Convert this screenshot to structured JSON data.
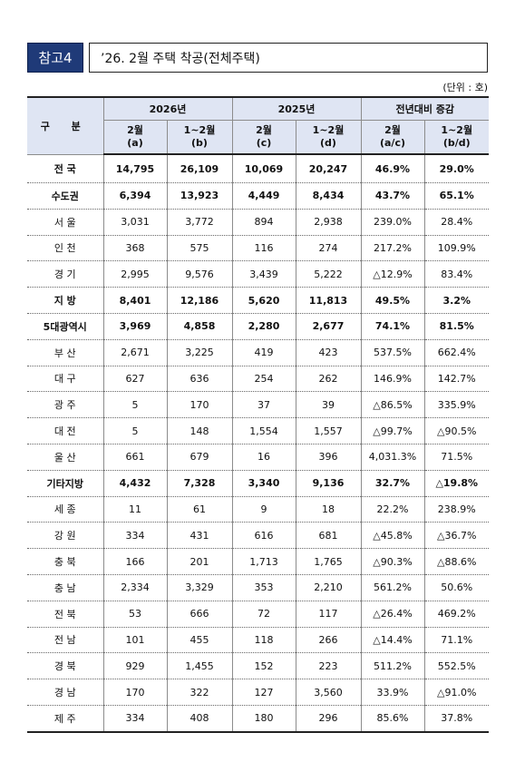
{
  "title": {
    "tag": "참고4",
    "text": "’26. 2월 주택 착공(전체주택)"
  },
  "unit": "(단위 : 호)",
  "headers": {
    "gubun": "구 분",
    "groups": [
      "2026년",
      "2025년",
      "전년대비 증감"
    ],
    "sub": [
      {
        "line1": "2월",
        "line2": "(a)"
      },
      {
        "line1": "1~2월",
        "line2": "(b)"
      },
      {
        "line1": "2월",
        "line2": "(c)"
      },
      {
        "line1": "1~2월",
        "line2": "(d)"
      },
      {
        "line1": "2월",
        "line2": "(a/c)"
      },
      {
        "line1": "1~2월",
        "line2": "(b/d)"
      }
    ]
  },
  "rows": [
    {
      "label": "전 국",
      "values": [
        "14,795",
        "26,109",
        "10,069",
        "20,247",
        "46.9%",
        "29.0%"
      ],
      "bold": true
    },
    {
      "label": "수도권",
      "values": [
        "6,394",
        "13,923",
        "4,449",
        "8,434",
        "43.7%",
        "65.1%"
      ],
      "bold": true
    },
    {
      "label": "서 울",
      "values": [
        "3,031",
        "3,772",
        "894",
        "2,938",
        "239.0%",
        "28.4%"
      ],
      "bold": false
    },
    {
      "label": "인 천",
      "values": [
        "368",
        "575",
        "116",
        "274",
        "217.2%",
        "109.9%"
      ],
      "bold": false
    },
    {
      "label": "경 기",
      "values": [
        "2,995",
        "9,576",
        "3,439",
        "5,222",
        "△12.9%",
        "83.4%"
      ],
      "bold": false
    },
    {
      "label": "지  방",
      "values": [
        "8,401",
        "12,186",
        "5,620",
        "11,813",
        "49.5%",
        "3.2%"
      ],
      "bold": true
    },
    {
      "label": "5대광역시",
      "values": [
        "3,969",
        "4,858",
        "2,280",
        "2,677",
        "74.1%",
        "81.5%"
      ],
      "bold": true
    },
    {
      "label": "부 산",
      "values": [
        "2,671",
        "3,225",
        "419",
        "423",
        "537.5%",
        "662.4%"
      ],
      "bold": false
    },
    {
      "label": "대 구",
      "values": [
        "627",
        "636",
        "254",
        "262",
        "146.9%",
        "142.7%"
      ],
      "bold": false
    },
    {
      "label": "광 주",
      "values": [
        "5",
        "170",
        "37",
        "39",
        "△86.5%",
        "335.9%"
      ],
      "bold": false
    },
    {
      "label": "대 전",
      "values": [
        "5",
        "148",
        "1,554",
        "1,557",
        "△99.7%",
        "△90.5%"
      ],
      "bold": false
    },
    {
      "label": "울 산",
      "values": [
        "661",
        "679",
        "16",
        "396",
        "4,031.3%",
        "71.5%"
      ],
      "bold": false
    },
    {
      "label": "기타지방",
      "values": [
        "4,432",
        "7,328",
        "3,340",
        "9,136",
        "32.7%",
        "△19.8%"
      ],
      "bold": true
    },
    {
      "label": "세 종",
      "values": [
        "11",
        "61",
        "9",
        "18",
        "22.2%",
        "238.9%"
      ],
      "bold": false
    },
    {
      "label": "강 원",
      "values": [
        "334",
        "431",
        "616",
        "681",
        "△45.8%",
        "△36.7%"
      ],
      "bold": false
    },
    {
      "label": "충 북",
      "values": [
        "166",
        "201",
        "1,713",
        "1,765",
        "△90.3%",
        "△88.6%"
      ],
      "bold": false
    },
    {
      "label": "충 남",
      "values": [
        "2,334",
        "3,329",
        "353",
        "2,210",
        "561.2%",
        "50.6%"
      ],
      "bold": false
    },
    {
      "label": "전 북",
      "values": [
        "53",
        "666",
        "72",
        "117",
        "△26.4%",
        "469.2%"
      ],
      "bold": false
    },
    {
      "label": "전 남",
      "values": [
        "101",
        "455",
        "118",
        "266",
        "△14.4%",
        "71.1%"
      ],
      "bold": false
    },
    {
      "label": "경 북",
      "values": [
        "929",
        "1,455",
        "152",
        "223",
        "511.2%",
        "552.5%"
      ],
      "bold": false
    },
    {
      "label": "경 남",
      "values": [
        "170",
        "322",
        "127",
        "3,560",
        "33.9%",
        "△91.0%"
      ],
      "bold": false
    },
    {
      "label": "제 주",
      "values": [
        "334",
        "408",
        "180",
        "296",
        "85.6%",
        "37.8%"
      ],
      "bold": false
    }
  ],
  "colors": {
    "tag_bg": "#1f3a78",
    "header_bg": "#dfe5f3"
  }
}
